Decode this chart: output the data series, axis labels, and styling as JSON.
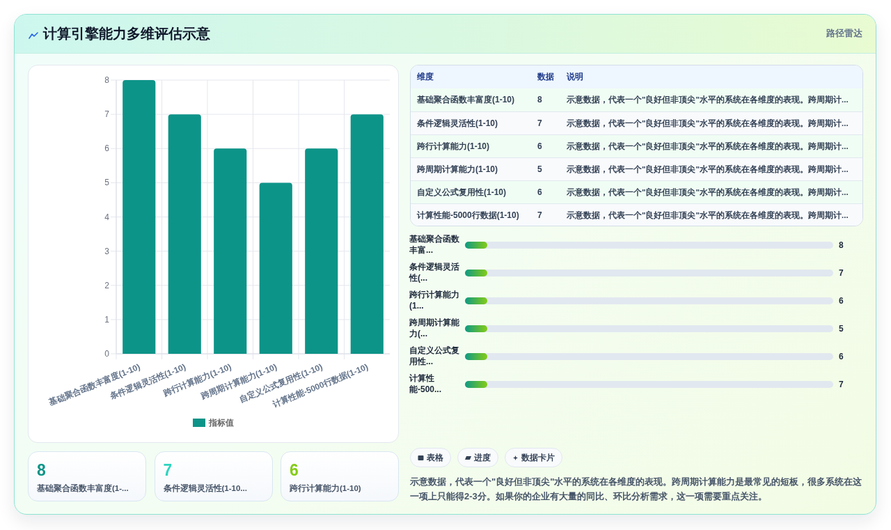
{
  "chart_data": [
    {
      "type": "bar",
      "title": "计算引擎能力多维评估示意",
      "categories": [
        "基础聚合函数丰富度(1-10)",
        "条件逻辑灵活性(1-10)",
        "跨行计算能力(1-10)",
        "跨周期计算能力(1-10)",
        "自定义公式复用性(1-10)",
        "计算性能-5000行数据(1-10)"
      ],
      "series": [
        {
          "name": "指标值",
          "color": "#0d9488",
          "values": [
            8,
            7,
            6,
            5,
            6,
            7
          ]
        }
      ],
      "ylim": [
        0,
        8
      ],
      "yticks": [
        0,
        1,
        2,
        3,
        4,
        5,
        6,
        7,
        8
      ],
      "grid": true,
      "legend": "bottom"
    },
    {
      "type": "other",
      "title": "路径雷达",
      "categories": [
        "基础聚合函数丰富度(1-10)",
        "条件逻辑灵活性(1-10)",
        "跨行计算能力(1-10)",
        "跨周期计算能力(1-10)",
        "自定义公式复用性(1-10)",
        "计算性能-5000行数据(1-10)"
      ],
      "values": [
        8,
        7,
        6,
        5,
        6,
        7
      ],
      "data_labels": true,
      "annotations": [
        "维度",
        "数据",
        "说明",
        "示意数据，代表一个\"良好但非顶尖\"水平的系统在各维度的表现。跨周期计...",
        "示意数据，代表一个\"良好但非顶尖\"水平的系统在各维度的表现。跨周期计...",
        "示意数据，代表一个\"良好但非顶尖\"水平的系统在各维度的表现。跨周期计...",
        "示意数据，代表一个\"良好但非顶尖\"水平的系统在各维度的表现。跨周期计...",
        "示意数据，代表一个\"良好但非顶尖\"水平的系统在各维度的表现。跨周期计...",
        "示意数据，代表一个\"良好但非顶尖\"水平的系统在各维度的表现。跨周期计..."
      ]
    },
    {
      "type": "other",
      "categories": [
        "基础聚合函数丰富...",
        "条件逻辑灵活性(...",
        "跨行计算能力(1...",
        "跨周期计算能力(...",
        "自定义公式复用性...",
        "计算性能-500..."
      ],
      "values": [
        8,
        7,
        6,
        5,
        6,
        7
      ],
      "data_labels": true
    },
    {
      "type": "other",
      "categories": [
        "基础聚合函数丰富度(1-...",
        "条件逻辑灵活性(1-10...",
        "跨行计算能力(1-10)"
      ],
      "values": [
        8,
        7,
        6
      ],
      "data_labels": true
    },
    {
      "type": "other",
      "annotations": [
        "表格",
        "进度",
        "数据卡片",
        "示意数据，代表一个\"良好但非顶尖\"水平的系统在各维度的表现。跨周期计算能力是最常见的短板，很多系统在这一项上只能得2-3分。如果你的企业有大量的同比、环比分析需求，这一项需要重点关注。"
      ]
    }
  ]
}
